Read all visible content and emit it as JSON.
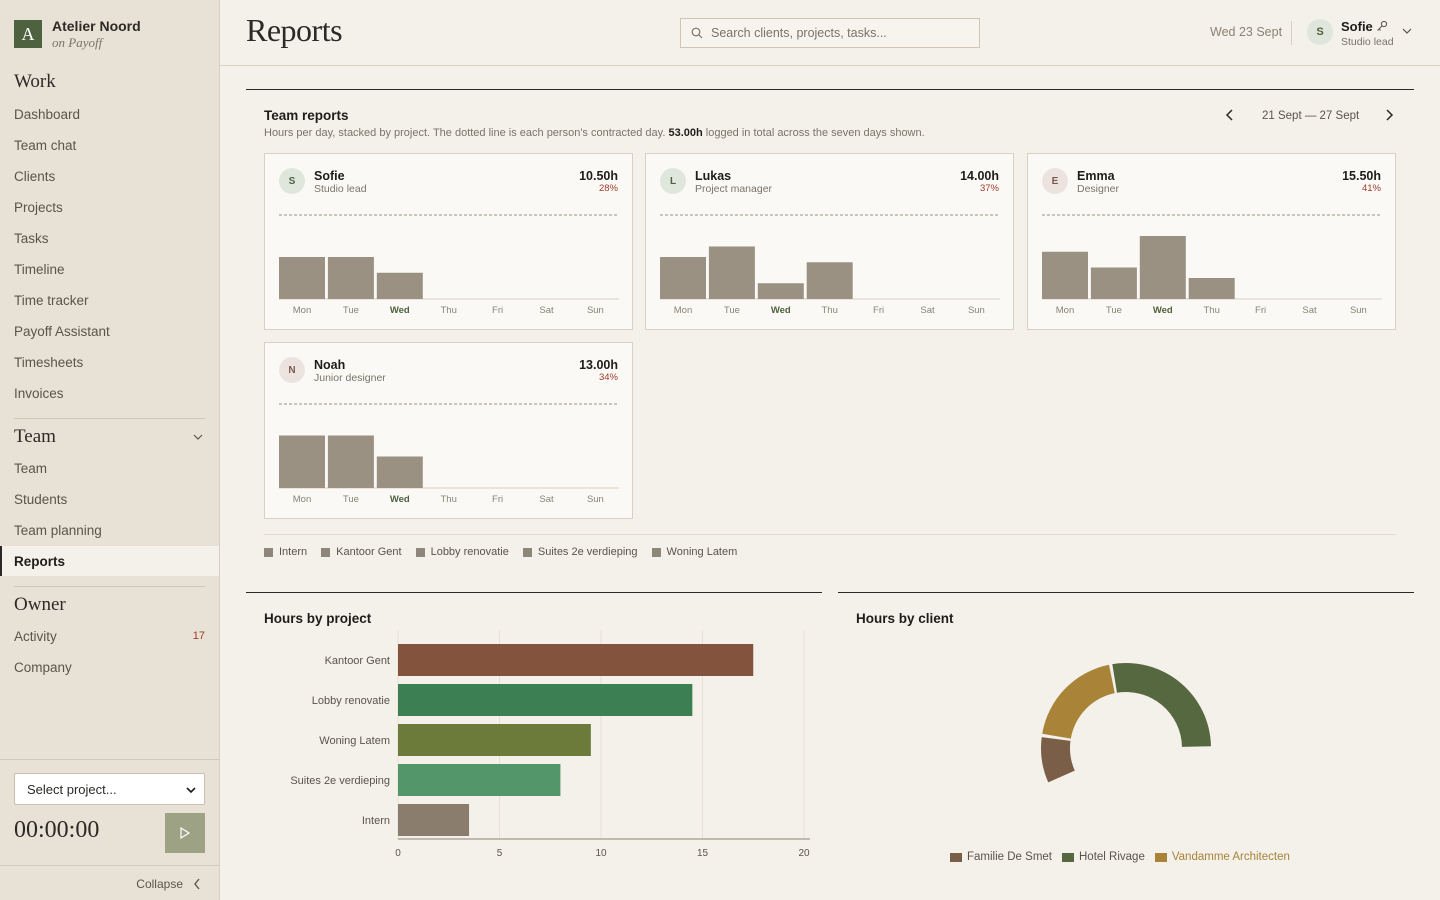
{
  "sidebar": {
    "brand": {
      "logo": "A",
      "name": "Atelier Noord",
      "sub": "on Payoff"
    },
    "sections": [
      {
        "title": "Work",
        "items": [
          "Dashboard",
          "Team chat",
          "Clients",
          "Projects",
          "Tasks",
          "Timeline",
          "Time tracker",
          "Payoff Assistant",
          "Timesheets",
          "Invoices"
        ]
      },
      {
        "title": "Team",
        "items": [
          "Team",
          "Students",
          "Team planning",
          "Reports"
        ],
        "active": "Reports"
      },
      {
        "title": "Owner",
        "items": [
          "Activity",
          "Company"
        ],
        "badge": "17"
      }
    ],
    "project_select": "Select project...",
    "timer": "00:00:00",
    "collapse": "Collapse"
  },
  "header": {
    "title": "Reports",
    "search_placeholder": "Search clients, projects, tasks...",
    "date": "Wed 23 Sept",
    "user": {
      "initial": "S",
      "name": "Sofie",
      "role": "Studio lead"
    }
  },
  "team_reports": {
    "title": "Team reports",
    "subtitle_pre": "Hours per day, stacked by project. The dotted line is each person's contracted day.",
    "total": "53.00h",
    "subtitle_post": "logged in total across the seven days shown.",
    "week_range": "21 Sept — 27 Sept",
    "days": [
      "Mon",
      "Tue",
      "Wed",
      "Thu",
      "Fri",
      "Sat",
      "Sun"
    ],
    "current_day": "Wed",
    "people": [
      {
        "initial": "S",
        "name": "Sofie",
        "role": "Studio lead",
        "total": "10.50h",
        "pct": "28%",
        "hours": [
          4,
          4,
          2.5,
          0,
          0,
          0,
          0
        ],
        "avatar_bg": "#dfe7dc",
        "avatar_fg": "#4f6240"
      },
      {
        "initial": "L",
        "name": "Lukas",
        "role": "Project manager",
        "total": "14.00h",
        "pct": "37%",
        "hours": [
          4,
          5,
          1.5,
          3.5,
          0,
          0,
          0
        ],
        "avatar_bg": "#dfe7dc",
        "avatar_fg": "#4f6240"
      },
      {
        "initial": "E",
        "name": "Emma",
        "role": "Designer",
        "total": "15.50h",
        "pct": "41%",
        "hours": [
          4.5,
          3,
          6,
          2,
          0,
          0,
          0
        ],
        "avatar_bg": "#ece3de",
        "avatar_fg": "#7a5a50"
      },
      {
        "initial": "N",
        "name": "Noah",
        "role": "Junior designer",
        "total": "13.00h",
        "pct": "34%",
        "hours": [
          5,
          5,
          3,
          0,
          0,
          0,
          0
        ],
        "avatar_bg": "#ece3de",
        "avatar_fg": "#7a5a50"
      }
    ],
    "contracted_day": 8,
    "legend": [
      "Intern",
      "Kantoor Gent",
      "Lobby renovatie",
      "Suites 2e verdieping",
      "Woning Latem"
    ]
  },
  "bottom": {
    "project_title": "Hours by project",
    "client_title": "Hours by client"
  },
  "chart_data": [
    {
      "type": "bar",
      "orientation": "horizontal",
      "title": "Hours by project",
      "categories": [
        "Kantoor Gent",
        "Lobby renovatie",
        "Woning Latem",
        "Suites 2e verdieping",
        "Intern"
      ],
      "values": [
        17.5,
        14.5,
        9.5,
        8,
        3.5
      ],
      "colors": [
        "#83533e",
        "#3b7f53",
        "#6c7b3a",
        "#539669",
        "#8a7d6e"
      ],
      "xlim": [
        0,
        20
      ],
      "xticks": [
        0,
        5,
        10,
        15,
        20
      ]
    },
    {
      "type": "pie",
      "title": "Hours by client",
      "labels": [
        "Familie De Smet",
        "Hotel Rivage",
        "Vandamme Architecten"
      ],
      "values": [
        8,
        24,
        17
      ],
      "colors": [
        "#7a5e48",
        "#56683f",
        "#a88338"
      ]
    }
  ]
}
